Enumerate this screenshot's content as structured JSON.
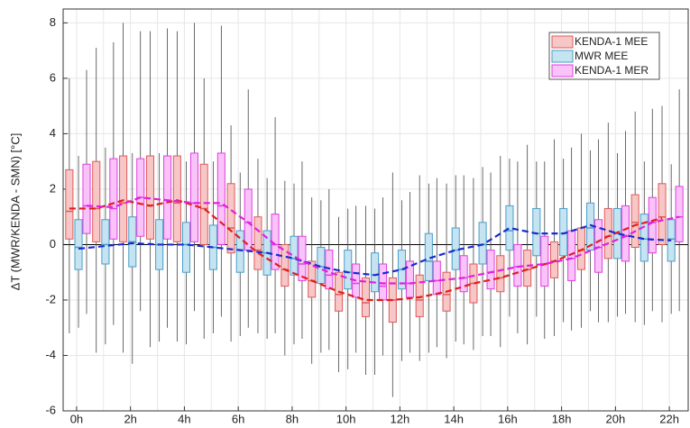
{
  "chart_data": {
    "type": "box",
    "y_label": "ΔT (MWR/KENDA - SMN) [°C]",
    "x": [
      0,
      1,
      2,
      3,
      4,
      5,
      6,
      7,
      8,
      9,
      10,
      11,
      12,
      13,
      14,
      15,
      16,
      17,
      18,
      19,
      20,
      21,
      22
    ],
    "xlim": [
      -0.5,
      22.7
    ],
    "xticks": [
      {
        "value": 0,
        "label": "0h"
      },
      {
        "value": 2,
        "label": "2h"
      },
      {
        "value": 4,
        "label": "4h"
      },
      {
        "value": 6,
        "label": "6h"
      },
      {
        "value": 8,
        "label": "8h"
      },
      {
        "value": 10,
        "label": "10h"
      },
      {
        "value": 12,
        "label": "12h"
      },
      {
        "value": 14,
        "label": "14h"
      },
      {
        "value": 16,
        "label": "16h"
      },
      {
        "value": 18,
        "label": "18h"
      },
      {
        "value": 20,
        "label": "20h"
      },
      {
        "value": 22,
        "label": "22h"
      }
    ],
    "ylim": [
      -6,
      8.5
    ],
    "yticks": [
      -6,
      -4,
      -2,
      0,
      2,
      4,
      6,
      8
    ],
    "grid": true,
    "legend": "upper right",
    "series": [
      {
        "name": "KENDA-1 MEE",
        "color": "#f7c6c6",
        "edge_color": "#e05a5a",
        "line_color": "#e01e1e",
        "mean": [
          1.3,
          1.3,
          1.6,
          1.4,
          1.6,
          1.3,
          0.5,
          -0.3,
          -0.9,
          -1.3,
          -1.7,
          -2.0,
          -2.0,
          -1.9,
          -1.7,
          -1.4,
          -1.2,
          -0.9,
          -0.6,
          -0.2,
          0.3,
          0.7,
          0.95
        ],
        "median": [
          1.2,
          1.3,
          1.5,
          1.4,
          1.5,
          1.3,
          0.6,
          -0.2,
          -0.9,
          -1.3,
          -1.8,
          -2.1,
          -2.0,
          -2.0,
          -1.8,
          -1.4,
          -1.2,
          -0.9,
          -0.6,
          -0.2,
          0.3,
          0.8,
          1.0
        ],
        "q1": [
          0.2,
          0.1,
          0.1,
          0.2,
          0.1,
          0.0,
          -0.3,
          -0.9,
          -1.5,
          -1.9,
          -2.4,
          -2.6,
          -2.8,
          -2.6,
          -2.4,
          -2.1,
          -1.7,
          -1.5,
          -1.2,
          -0.9,
          -0.5,
          -0.1,
          0.0
        ],
        "q3": [
          2.7,
          3.0,
          3.2,
          3.2,
          3.2,
          2.9,
          2.2,
          1.0,
          0.0,
          -0.6,
          -1.0,
          -1.2,
          -1.2,
          -1.1,
          -1.0,
          -0.7,
          -0.4,
          -0.2,
          0.1,
          0.6,
          1.3,
          1.8,
          2.2
        ],
        "low": [
          -3.2,
          -3.9,
          -3.9,
          -3.7,
          -3.5,
          -3.4,
          -3.5,
          -3.2,
          -4.0,
          -4.3,
          -4.6,
          -4.7,
          -5.5,
          -4.2,
          -4.1,
          -3.8,
          -3.7,
          -3.6,
          -3.3,
          -3.0,
          -2.8,
          -2.8,
          -2.8
        ],
        "high": [
          6.0,
          7.1,
          8.0,
          7.7,
          7.7,
          6.0,
          4.3,
          3.1,
          2.3,
          1.7,
          1.0,
          1.4,
          2.6,
          2.5,
          2.2,
          2.4,
          3.2,
          3.6,
          3.8,
          4.0,
          4.4,
          4.8,
          5.0
        ]
      },
      {
        "name": "MWR MEE",
        "color": "#c6e3f1",
        "edge_color": "#4a9fc8",
        "line_color": "#1a2ad0",
        "mean": [
          -0.15,
          -0.05,
          0.05,
          0.0,
          0.0,
          -0.1,
          -0.2,
          -0.3,
          -0.5,
          -0.8,
          -1.0,
          -1.1,
          -0.9,
          -0.5,
          -0.2,
          0.0,
          0.6,
          0.4,
          0.4,
          0.7,
          0.4,
          0.2,
          0.15
        ],
        "median": [
          -0.1,
          0.0,
          0.1,
          0.0,
          0.0,
          -0.1,
          -0.2,
          -0.3,
          -0.5,
          -0.8,
          -1.0,
          -1.1,
          -0.9,
          -0.6,
          -0.2,
          0.0,
          0.5,
          0.4,
          0.4,
          0.6,
          0.4,
          0.2,
          0.2
        ],
        "q1": [
          -0.9,
          -0.7,
          -0.8,
          -0.9,
          -1.0,
          -0.9,
          -1.0,
          -1.1,
          -1.1,
          -1.4,
          -1.6,
          -1.7,
          -1.6,
          -1.3,
          -0.9,
          -0.7,
          -0.2,
          -0.4,
          -0.4,
          -0.2,
          -0.5,
          -0.6,
          -0.6
        ],
        "q3": [
          0.9,
          0.9,
          1.0,
          0.9,
          0.8,
          0.7,
          0.5,
          0.5,
          0.3,
          -0.1,
          -0.2,
          -0.3,
          -0.2,
          0.4,
          0.6,
          0.8,
          1.4,
          1.3,
          1.3,
          1.5,
          1.3,
          1.1,
          0.9
        ],
        "low": [
          -3.0,
          -3.6,
          -4.3,
          -3.5,
          -3.6,
          -3.2,
          -3.3,
          -3.4,
          -3.6,
          -3.9,
          -4.5,
          -4.7,
          -4.2,
          -3.9,
          -3.5,
          -3.3,
          -2.6,
          -2.6,
          -2.8,
          -2.4,
          -2.6,
          -2.9,
          -2.5
        ],
        "high": [
          3.2,
          3.5,
          3.3,
          3.3,
          3.0,
          3.0,
          2.6,
          2.4,
          2.2,
          1.6,
          1.3,
          1.3,
          1.6,
          2.2,
          2.5,
          2.8,
          3.1,
          3.0,
          3.1,
          3.4,
          3.3,
          3.0,
          2.9
        ]
      },
      {
        "name": "KENDA-1 MER",
        "color": "#f9c2f9",
        "edge_color": "#e040e0",
        "line_color": "#e020e0",
        "mean": [
          1.4,
          1.35,
          1.7,
          1.6,
          1.5,
          1.5,
          0.8,
          0.0,
          -0.6,
          -1.0,
          -1.3,
          -1.4,
          -1.4,
          -1.3,
          -1.2,
          -1.0,
          -0.8,
          -0.7,
          -0.5,
          -0.1,
          0.3,
          0.8,
          1.0
        ],
        "median": [
          1.4,
          1.3,
          1.7,
          1.6,
          1.5,
          1.4,
          0.8,
          0.0,
          -0.7,
          -1.1,
          -1.4,
          -1.5,
          -1.4,
          -1.3,
          -1.2,
          -1.0,
          -0.8,
          -0.7,
          -0.5,
          -0.1,
          0.3,
          0.8,
          1.0
        ],
        "q1": [
          0.4,
          0.2,
          0.3,
          0.2,
          0.1,
          0.0,
          -0.2,
          -0.9,
          -1.3,
          -1.6,
          -1.9,
          -2.0,
          -1.9,
          -1.8,
          -1.7,
          -1.6,
          -1.5,
          -1.5,
          -1.3,
          -1.0,
          -0.6,
          -0.3,
          0.1
        ],
        "q3": [
          2.9,
          3.1,
          3.1,
          3.2,
          3.3,
          3.3,
          2.0,
          1.1,
          0.3,
          -0.2,
          -0.7,
          -0.7,
          -0.6,
          -0.6,
          -0.4,
          -0.2,
          0.0,
          0.3,
          0.5,
          0.9,
          1.4,
          1.7,
          2.1
        ],
        "low": [
          -2.5,
          -2.9,
          -2.4,
          -3.0,
          -2.4,
          -2.6,
          -3.0,
          -3.2,
          -3.4,
          -3.8,
          -3.9,
          -4.0,
          -3.9,
          -3.7,
          -3.6,
          -3.3,
          -3.2,
          -3.4,
          -3.1,
          -2.8,
          -2.5,
          -2.4,
          -2.4
        ],
        "high": [
          6.3,
          7.3,
          7.7,
          7.8,
          8.0,
          7.9,
          5.6,
          4.6,
          3.0,
          2.0,
          1.4,
          1.7,
          1.9,
          2.4,
          2.5,
          2.6,
          3.0,
          3.0,
          3.5,
          3.8,
          4.1,
          4.9,
          5.6
        ]
      }
    ]
  }
}
